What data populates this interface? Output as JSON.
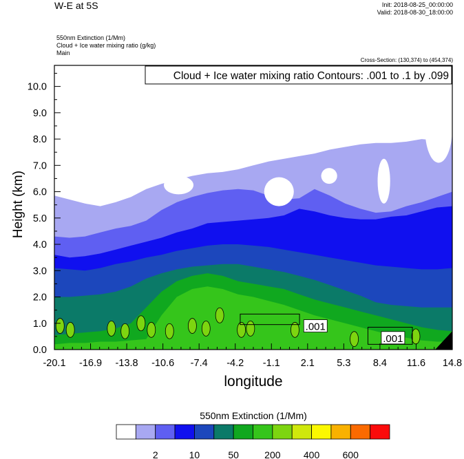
{
  "header": {
    "title": "W-E at 5S",
    "init": "Init: 2018-08-25_00:00:00",
    "valid": "Valid: 2018-08-30_18:00:00",
    "fields": [
      "550nm Extinction   (1/Mm)",
      "Cloud + Ice water mixing ratio   (g/kg)",
      "Main"
    ],
    "cross_section": "Cross-Section: (130,374) to (454,374)"
  },
  "chart_data": {
    "type": "heatmap",
    "title": "W-E at 5S",
    "xlabel": "longitude",
    "ylabel": "Height (km)",
    "xlim": [
      -20.1,
      14.8
    ],
    "ylim": [
      0.0,
      10.8
    ],
    "x_ticks": [
      "-20.1",
      "-16.9",
      "-13.8",
      "-10.6",
      "-7.4",
      "-4.2",
      "-1.1",
      "2.1",
      "5.3",
      "8.4",
      "11.6",
      "14.8"
    ],
    "y_ticks": [
      "0.0",
      "1.0",
      "2.0",
      "3.0",
      "4.0",
      "5.0",
      "6.0",
      "7.0",
      "8.0",
      "9.0",
      "10.0"
    ],
    "contour_label": "Cloud + Ice water mixing ratio Contours: .001 to .1 by .099",
    "contour_annotations": [
      {
        "text": ".001",
        "lon": 2.8,
        "height": 0.9
      },
      {
        "text": ".001",
        "lon": 9.6,
        "height": 0.45
      }
    ],
    "colorbar": {
      "title": "550nm Extinction  (1/Mm)",
      "colors": [
        "#ffffff",
        "#a8a8f2",
        "#5f5ff2",
        "#1010ef",
        "#1c47bc",
        "#0b7a68",
        "#10a81f",
        "#35c51b",
        "#7dd510",
        "#cfe80c",
        "#fbf800",
        "#f9b100",
        "#fb6a00",
        "#fb0b0b"
      ],
      "labels": [
        "2",
        "10",
        "50",
        "200",
        "400",
        "600"
      ]
    },
    "layers": [
      {
        "color": "#a8a8f2",
        "top_km": [
          5.85,
          5.7,
          5.55,
          5.45,
          5.6,
          5.8,
          6.1,
          6.3,
          6.45,
          6.6,
          6.7,
          6.75,
          6.85,
          7.0,
          7.15,
          7.25,
          7.35,
          7.45,
          7.6,
          7.7,
          7.8,
          7.85,
          7.85,
          7.9,
          8.0,
          7.95,
          8.1
        ]
      },
      {
        "color": "#5f5ff2",
        "top_km": [
          4.3,
          4.25,
          4.3,
          4.45,
          4.6,
          4.7,
          4.9,
          5.3,
          5.6,
          5.8,
          5.95,
          6.05,
          6.1,
          6.05,
          5.85,
          5.7,
          5.75,
          6.1,
          5.85,
          5.55,
          5.35,
          5.2,
          5.25,
          5.45,
          5.6,
          5.8,
          6.0
        ]
      },
      {
        "color": "#1010ef",
        "top_km": [
          3.6,
          3.5,
          3.55,
          3.65,
          3.8,
          3.95,
          4.1,
          4.25,
          4.45,
          4.6,
          4.8,
          4.85,
          4.9,
          4.95,
          5.0,
          5.1,
          5.35,
          5.25,
          5.1,
          5.0,
          4.95,
          4.95,
          5.05,
          5.1,
          5.25,
          5.4,
          5.45
        ]
      },
      {
        "color": "#1c47bc",
        "top_km": [
          3.1,
          3.05,
          3.0,
          3.1,
          3.25,
          3.35,
          3.5,
          3.6,
          3.75,
          3.85,
          3.95,
          4.0,
          4.0,
          3.95,
          3.9,
          3.8,
          3.7,
          3.6,
          3.5,
          3.4,
          3.3,
          3.2,
          3.15,
          3.1,
          3.05,
          3.05,
          3.1
        ]
      },
      {
        "color": "#0b7a68",
        "top_km": [
          2.0,
          2.0,
          2.05,
          2.1,
          2.2,
          2.4,
          2.7,
          2.9,
          3.05,
          3.15,
          3.2,
          3.25,
          3.25,
          3.15,
          3.05,
          2.95,
          2.8,
          2.65,
          2.45,
          2.25,
          2.05,
          1.8,
          1.7,
          1.65,
          1.6,
          1.6,
          1.6
        ]
      },
      {
        "color": "#10a81f",
        "top_km": [
          0.55,
          0.6,
          0.65,
          0.7,
          0.8,
          1.0,
          1.6,
          2.2,
          2.6,
          2.8,
          2.9,
          2.8,
          2.6,
          2.5,
          2.4,
          2.3,
          2.1,
          1.9,
          1.75,
          1.6,
          1.45,
          1.3,
          1.15,
          1.0,
          0.85,
          0.75,
          0.7
        ]
      },
      {
        "color": "#35c51b",
        "top_km": [
          0.2,
          0.25,
          0.25,
          0.3,
          0.3,
          0.35,
          0.4,
          1.3,
          2.0,
          2.3,
          2.4,
          2.3,
          2.1,
          2.0,
          1.85,
          1.7,
          1.5,
          1.3,
          1.15,
          1.0,
          0.85,
          0.7,
          0.55,
          0.45,
          0.35,
          0.3,
          0.3
        ]
      }
    ]
  }
}
